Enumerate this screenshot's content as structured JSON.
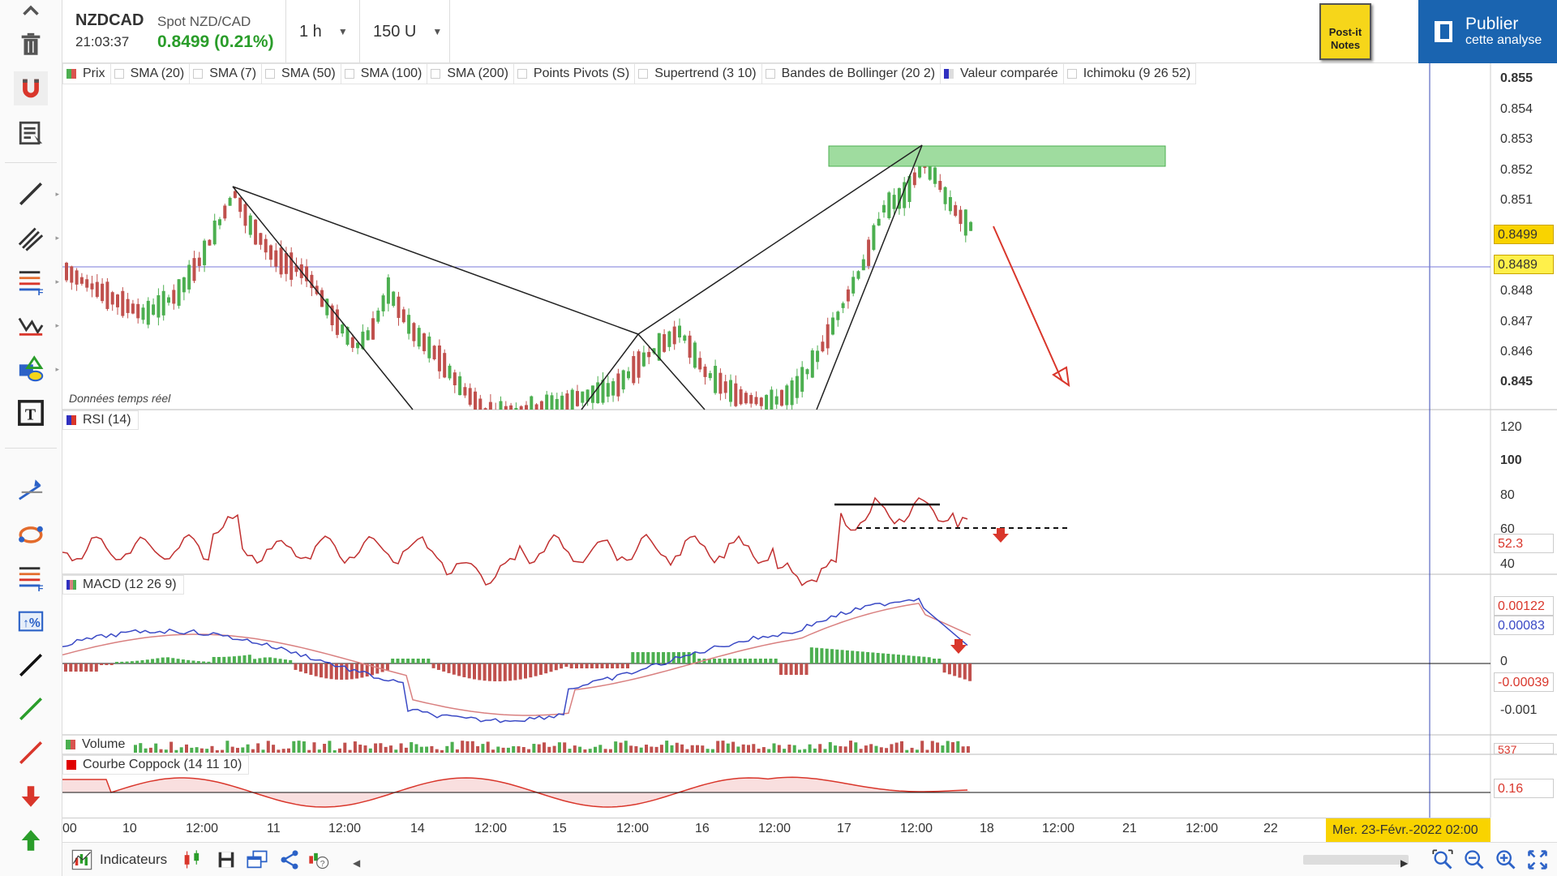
{
  "header": {
    "symbol": "NZDCAD",
    "symbol_name": "Spot NZD/CAD",
    "time": "21:03:37",
    "price": "0.8499 (0.21%)",
    "timeframe": "1 h",
    "units": "150 U",
    "postit_line1": "Post-it",
    "postit_line2": "Notes",
    "publish_line1": "Publier",
    "publish_line2": "cette analyse"
  },
  "legend": [
    "Prix",
    "SMA (20)",
    "SMA (7)",
    "SMA (50)",
    "SMA (100)",
    "SMA (200)",
    "Points Pivots (S)",
    "Supertrend (3 10)",
    "Bandes de Bollinger (20 2)",
    "Valeur comparée",
    "Ichimoku (9 26 52)"
  ],
  "realtime_label": "Données temps réel",
  "price_axis": {
    "ticks": [
      "0.855",
      "0.854",
      "0.853",
      "0.852",
      "0.851",
      "0.8499",
      "0.8489",
      "0.848",
      "0.847",
      "0.846",
      "0.845"
    ],
    "current_price": "0.8499",
    "compare_price": "0.8489"
  },
  "rsi": {
    "title": "RSI (14)",
    "ticks": [
      "120",
      "100",
      "80",
      "60",
      "40"
    ],
    "value": "52.3"
  },
  "macd": {
    "title": "MACD (12 26 9)",
    "ticks": [
      "0",
      "-0.001"
    ],
    "value_signal": "0.00122",
    "value_macd": "0.00083",
    "value_hist": "-0.00039"
  },
  "volume": {
    "title": "Volume",
    "value": "537"
  },
  "coppock": {
    "title": "Courbe Coppock (14 11 10)",
    "value": "0.16"
  },
  "xaxis": {
    "ticks": [
      "00",
      "10",
      "12:00",
      "11",
      "12:00",
      "14",
      "12:00",
      "15",
      "12:00",
      "16",
      "12:00",
      "17",
      "12:00",
      "18",
      "12:00",
      "21",
      "12:00",
      "22"
    ],
    "cursor_date": "Mer. 23-Févr.-2022 02:00"
  },
  "bottombar": {
    "indicators_label": "Indicateurs"
  },
  "colors": {
    "up": "#4caf50",
    "down": "#c0504d",
    "accent": "#1a64b0",
    "price_up": "#2a9d2a",
    "badge": "#f9d300"
  }
}
